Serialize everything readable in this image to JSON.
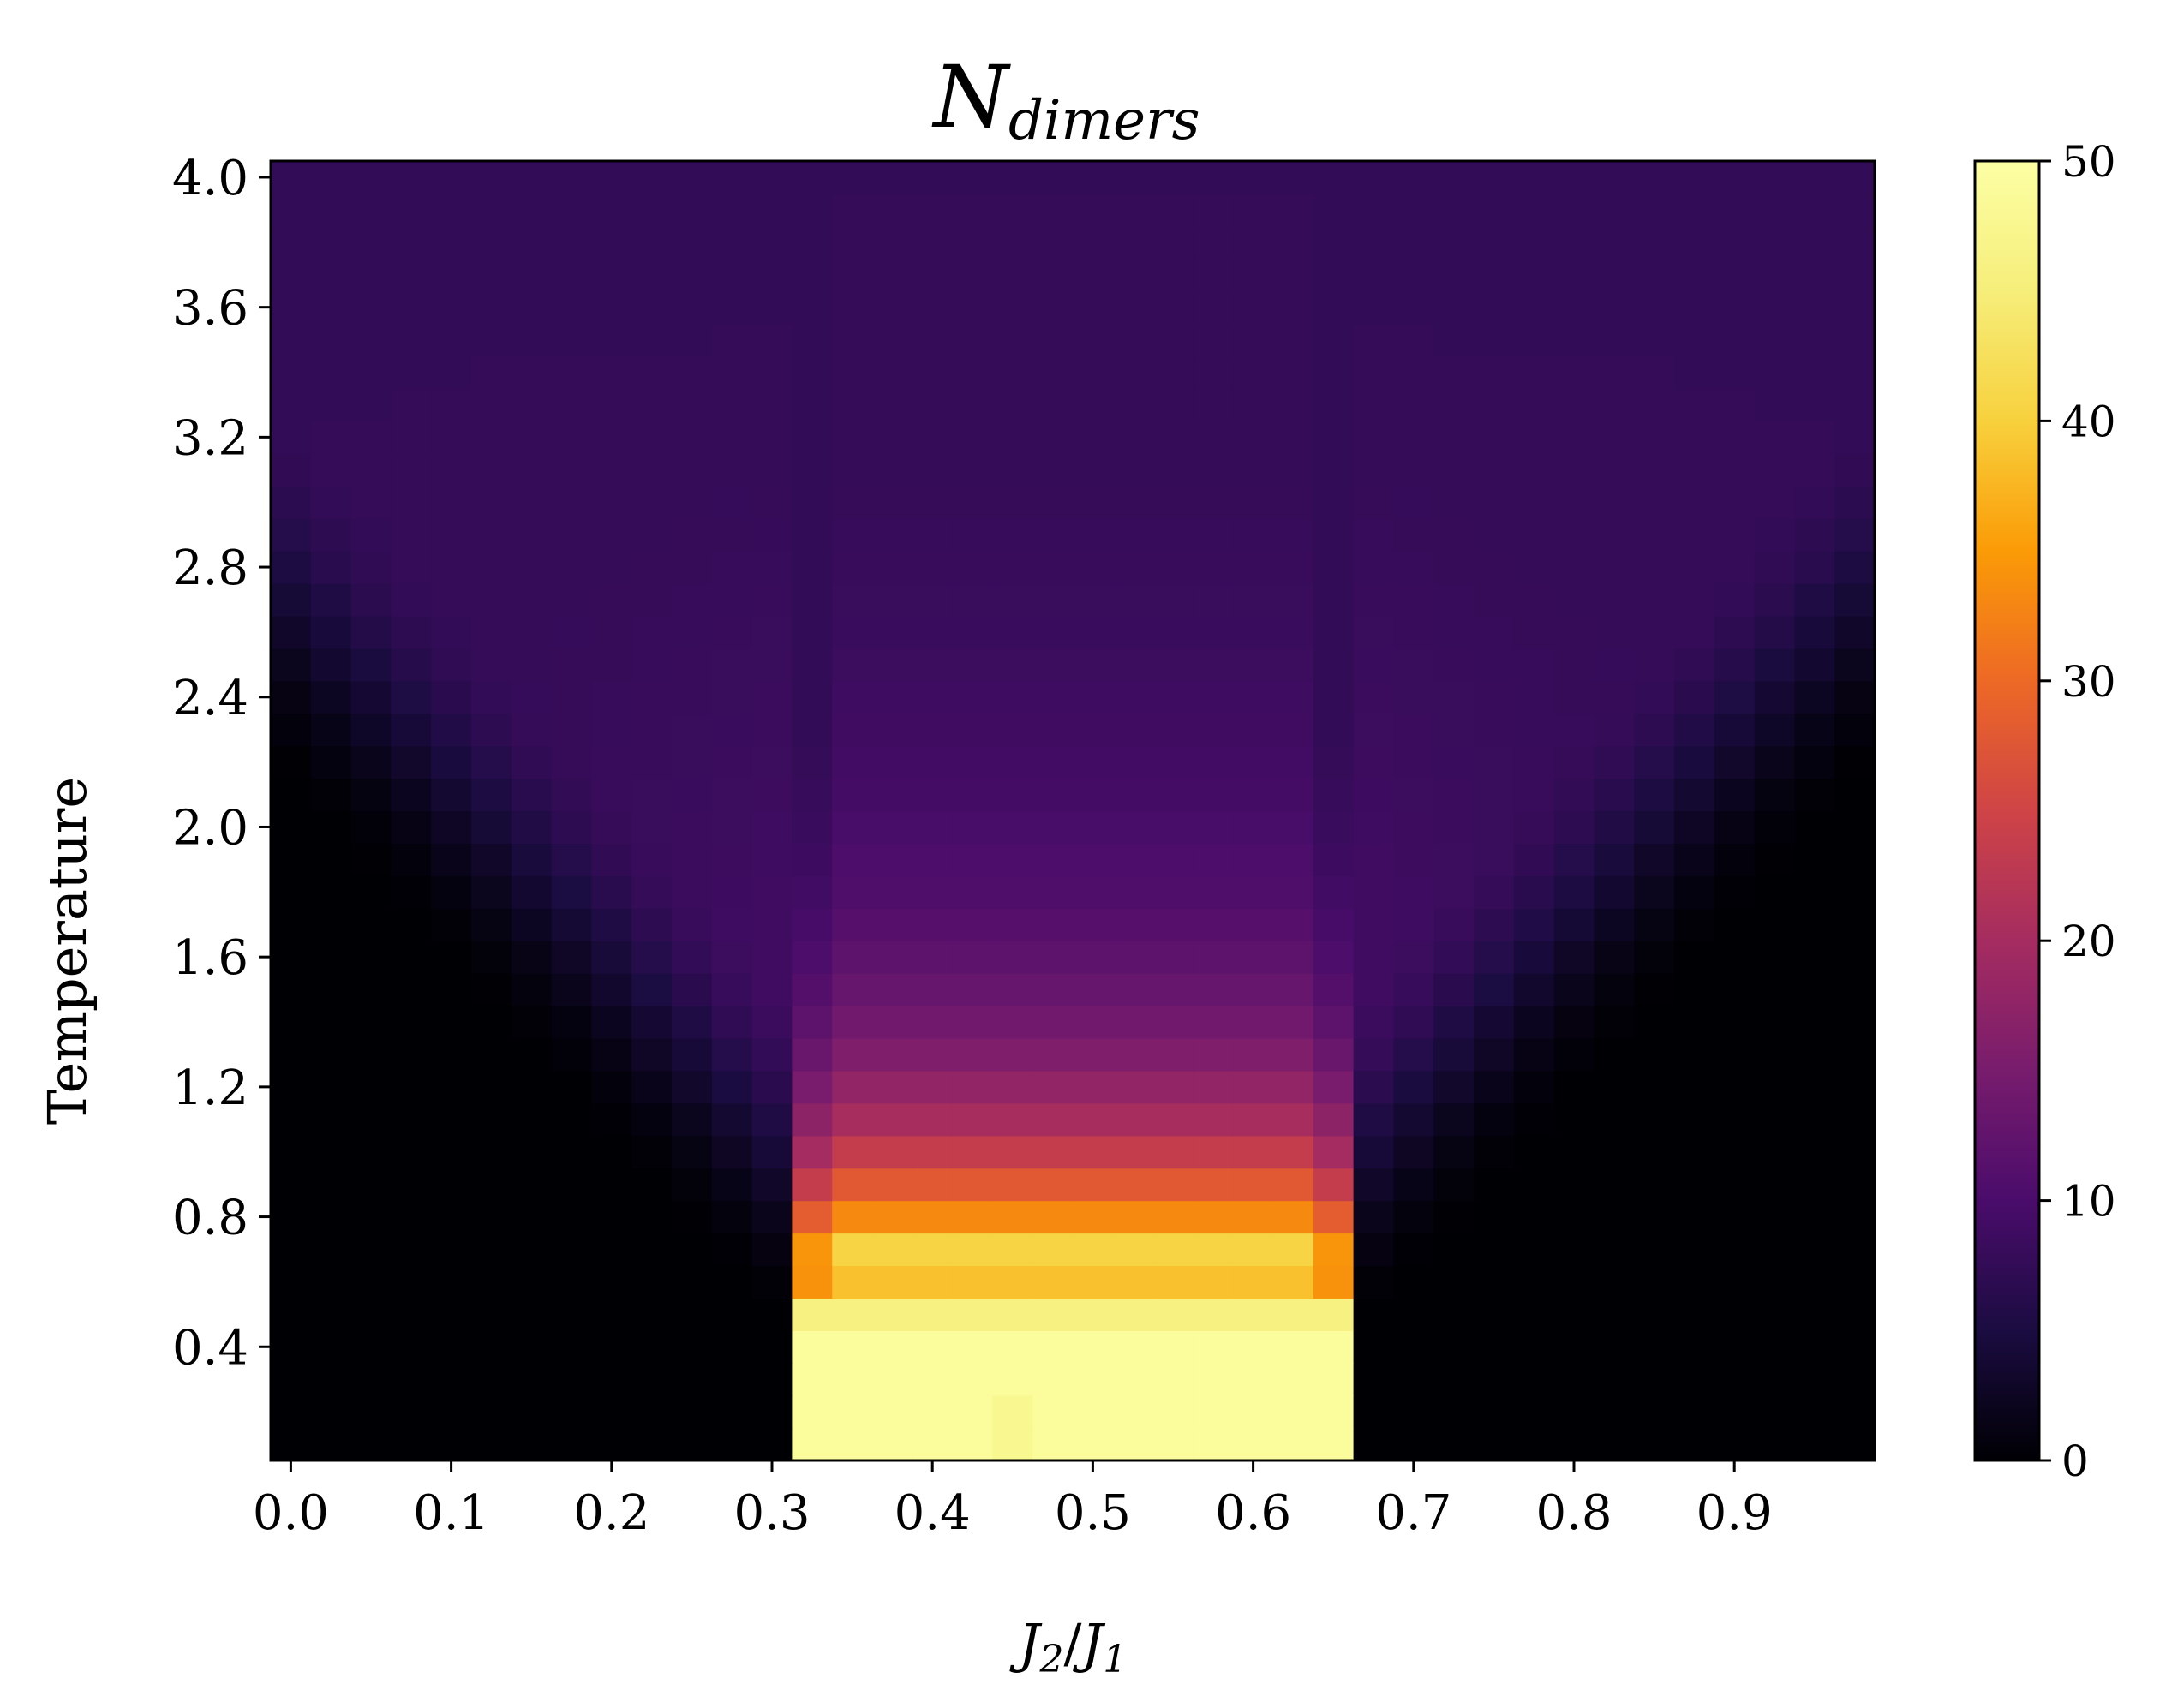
{
  "chart_data": {
    "type": "heatmap",
    "title": "N",
    "title_subscript": "dimers",
    "xlabel": "J2/J1",
    "xlabel_parts": {
      "j": "J",
      "sub2": "2",
      "slash": "/",
      "sub1": "1"
    },
    "ylabel": "Temperature",
    "x_start": -0.0125,
    "x_step": 0.025,
    "nx": 40,
    "y_start": 0.05,
    "y_step": 0.1,
    "ny": 40,
    "xlim": [
      -0.0125,
      0.9875
    ],
    "ylim": [
      0.05,
      4.05
    ],
    "x_ticks": [
      "0.0",
      "0.1",
      "0.2",
      "0.3",
      "0.4",
      "0.5",
      "0.6",
      "0.7",
      "0.8",
      "0.9"
    ],
    "y_ticks": [
      "0.4",
      "0.8",
      "1.2",
      "1.6",
      "2.0",
      "2.4",
      "2.8",
      "3.2",
      "3.6",
      "4.0"
    ],
    "colormap": "inferno",
    "colorbar": {
      "range": [
        0,
        50
      ],
      "ticks": [
        "0",
        "10",
        "20",
        "30",
        "40",
        "50"
      ],
      "placement": "right"
    },
    "model": {
      "ordered_region_x": [
        0.3125,
        0.6625
      ],
      "ordered_value_low_T": 49,
      "background_high_T": 7.6,
      "note_values": "z = N_dimers value per cell, see drawing rules"
    },
    "grid": false,
    "legend": "none"
  }
}
